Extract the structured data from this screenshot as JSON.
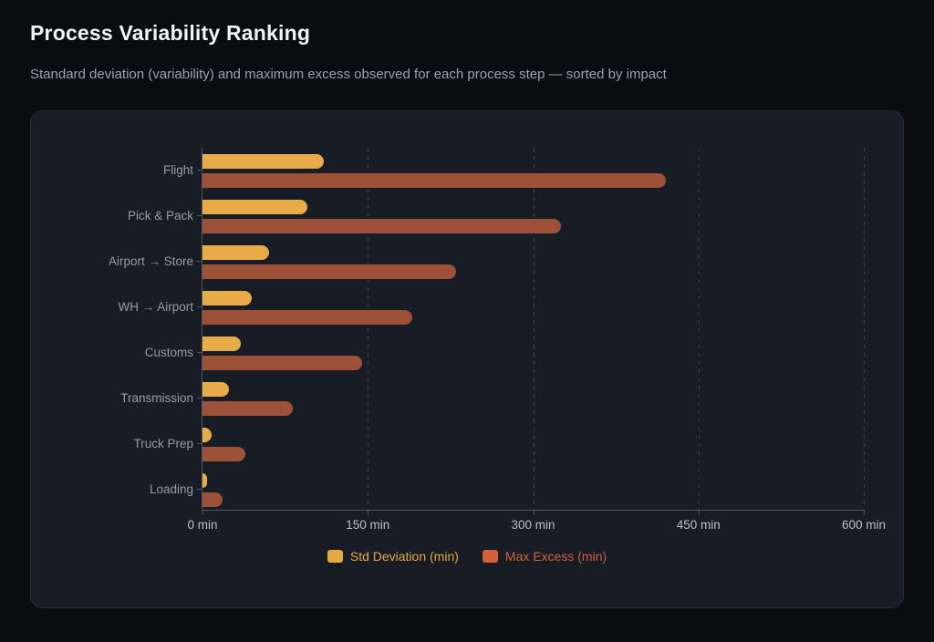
{
  "page": {
    "title": "Process Variability Ranking",
    "subtitle": "Standard deviation (variability) and maximum excess observed for each process step — sorted by impact"
  },
  "colors": {
    "page_background": "#0a0c10",
    "card_background": "#181c25",
    "card_border": "#272d38",
    "gridline": "#3a4150",
    "axis_line": "#4f5662",
    "category_label": "#929caa",
    "tick_label": "#b9bec7",
    "title": "#f1f3f6",
    "subtitle": "#9aa2ad",
    "std_deviation": "#e5a942",
    "max_excess": "#d5603c"
  },
  "chart_data": {
    "type": "bar",
    "orientation": "horizontal",
    "title": "Process Variability Ranking",
    "categories": [
      "Flight",
      "Pick & Pack",
      "Airport → Store",
      "WH → Airport",
      "Customs",
      "Transmission",
      "Truck Prep",
      "Loading"
    ],
    "series": [
      {
        "name": "Std Deviation (min)",
        "color": "#e5a942",
        "bar_color": "#e7ac48",
        "values": [
          110,
          95,
          60,
          45,
          35,
          24,
          8,
          4
        ]
      },
      {
        "name": "Max Excess (min)",
        "color": "#d5603c",
        "bar_color": "#9d5138",
        "values": [
          420,
          325,
          230,
          190,
          145,
          82,
          39,
          18
        ]
      }
    ],
    "xlabel": "",
    "ylabel": "",
    "xlim": [
      0,
      600
    ],
    "tick_values": [
      0,
      150,
      300,
      450,
      600
    ],
    "tick_labels": [
      "0 min",
      "150 min",
      "300 min",
      "450 min",
      "600 min"
    ],
    "grid": "dashed-vertical",
    "legend_position": "bottom-center",
    "sorted": "descending by impact"
  }
}
